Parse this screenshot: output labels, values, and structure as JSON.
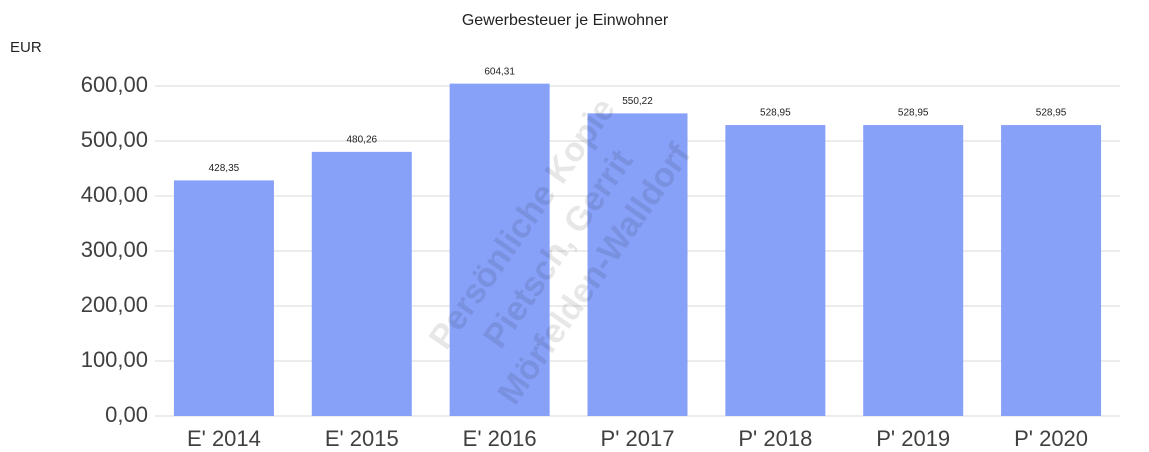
{
  "chart_data": {
    "type": "bar",
    "title": "Gewerbesteuer je Einwohner",
    "y_label": "EUR",
    "categories": [
      "E' 2014",
      "E' 2015",
      "E' 2016",
      "P' 2017",
      "P' 2018",
      "P' 2019",
      "P' 2020"
    ],
    "values": [
      428.35,
      480.26,
      604.31,
      550.22,
      528.95,
      528.95,
      528.95
    ],
    "value_labels": [
      "428,35",
      "480,26",
      "604,31",
      "550,22",
      "528,95",
      "528,95",
      "528,95"
    ],
    "color": "#87a0f8",
    "ylim": [
      0,
      600
    ],
    "yticks": [
      {
        "value": 0,
        "label": "0,00"
      },
      {
        "value": 100,
        "label": "100,00"
      },
      {
        "value": 200,
        "label": "200,00"
      },
      {
        "value": 300,
        "label": "300,00"
      },
      {
        "value": 400,
        "label": "400,00"
      },
      {
        "value": 500,
        "label": "500,00"
      },
      {
        "value": 600,
        "label": "600,00"
      }
    ],
    "grid": true,
    "watermark": [
      "Persönliche Kopie",
      "Pietsch, Gerrit",
      "Mörfelden-Walldorf"
    ]
  }
}
